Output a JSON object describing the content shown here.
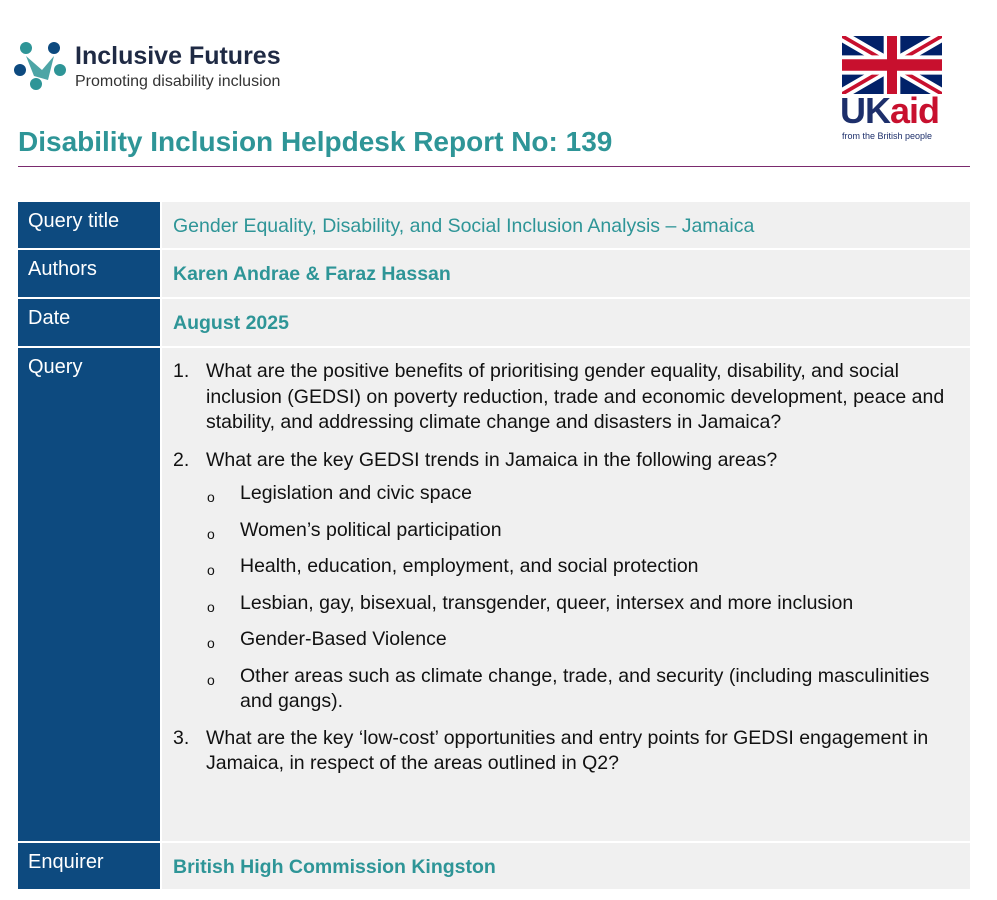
{
  "header": {
    "logo": {
      "name": "Inclusive Futures",
      "tagline": "Promoting disability inclusion"
    },
    "ukaid": {
      "uk": "UK",
      "aid": "aid",
      "tagline": "from the British people"
    },
    "title": "Disability Inclusion Helpdesk Report No: 139"
  },
  "table": {
    "rows": [
      {
        "label": "Query title",
        "value": "Gender Equality, Disability, and Social Inclusion Analysis – Jamaica"
      },
      {
        "label": "Authors",
        "value": "Karen Andrae & Faraz Hassan"
      },
      {
        "label": "Date",
        "value": "August 2025"
      },
      {
        "label": "Query",
        "items": [
          {
            "marker": "1.",
            "text": "What are the positive benefits of prioritising gender equality, disability, and social inclusion (GEDSI) on poverty reduction, trade and economic development, peace and stability, and addressing climate change and disasters in Jamaica?"
          },
          {
            "marker": "2.",
            "text": "What are the key GEDSI trends in Jamaica in the following areas?",
            "subitems": [
              {
                "marker": "o",
                "text": "Legislation and civic space"
              },
              {
                "marker": "o",
                "text": "Women’s political participation"
              },
              {
                "marker": "o",
                "text": "Health, education, employment, and social protection"
              },
              {
                "marker": "o",
                "text": "Lesbian, gay, bisexual, transgender, queer, intersex and more inclusion"
              },
              {
                "marker": "o",
                "text": "Gender-Based Violence"
              },
              {
                "marker": "o",
                "text": "Other areas such as climate change, trade, and security (including masculinities and gangs)."
              }
            ]
          },
          {
            "marker": "3.",
            "text": "What are the key ‘low-cost’ opportunities and entry points for GEDSI engagement in Jamaica, in respect of the areas outlined in Q2?"
          }
        ]
      },
      {
        "label": "Enquirer",
        "value": "British High Commission Kingston"
      }
    ]
  }
}
